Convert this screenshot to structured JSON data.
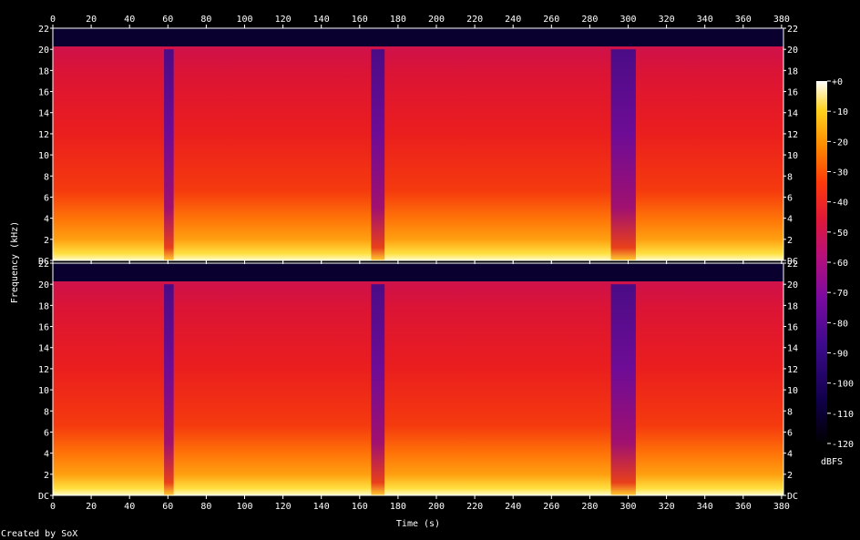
{
  "chart_data": {
    "type": "heatmap",
    "title": "",
    "xlabel": "Time (s)",
    "ylabel": "Frequency (kHz)",
    "xlim": [
      0,
      381
    ],
    "ylim": [
      0,
      22
    ],
    "x_ticks": [
      "0",
      "20",
      "40",
      "60",
      "80",
      "100",
      "120",
      "140",
      "160",
      "180",
      "200",
      "220",
      "240",
      "260",
      "280",
      "300",
      "320",
      "340",
      "360",
      "380"
    ],
    "x_tick_values": [
      0,
      20,
      40,
      60,
      80,
      100,
      120,
      140,
      160,
      180,
      200,
      220,
      240,
      260,
      280,
      300,
      320,
      340,
      360,
      380
    ],
    "y_ticks": [
      "DC",
      "2",
      "4",
      "6",
      "8",
      "10",
      "12",
      "14",
      "16",
      "18",
      "20",
      "22"
    ],
    "y_tick_values": [
      0,
      2,
      4,
      6,
      8,
      10,
      12,
      14,
      16,
      18,
      20,
      22
    ],
    "channels": 2,
    "upper_cutoff_khz": 20,
    "colorbar": {
      "label": "dBFS",
      "ticks": [
        "+0",
        "-10",
        "-20",
        "-30",
        "-40",
        "-50",
        "-60",
        "-70",
        "-80",
        "-90",
        "-100",
        "-110",
        "-120"
      ],
      "tick_values": [
        0,
        -10,
        -20,
        -30,
        -40,
        -50,
        -60,
        -70,
        -80,
        -90,
        -100,
        -110,
        -120
      ],
      "range": [
        -120,
        0
      ]
    },
    "quiet_segments_s": [
      [
        58,
        63
      ],
      [
        166,
        173
      ],
      [
        291,
        304
      ]
    ],
    "footer": "Created by SoX"
  }
}
